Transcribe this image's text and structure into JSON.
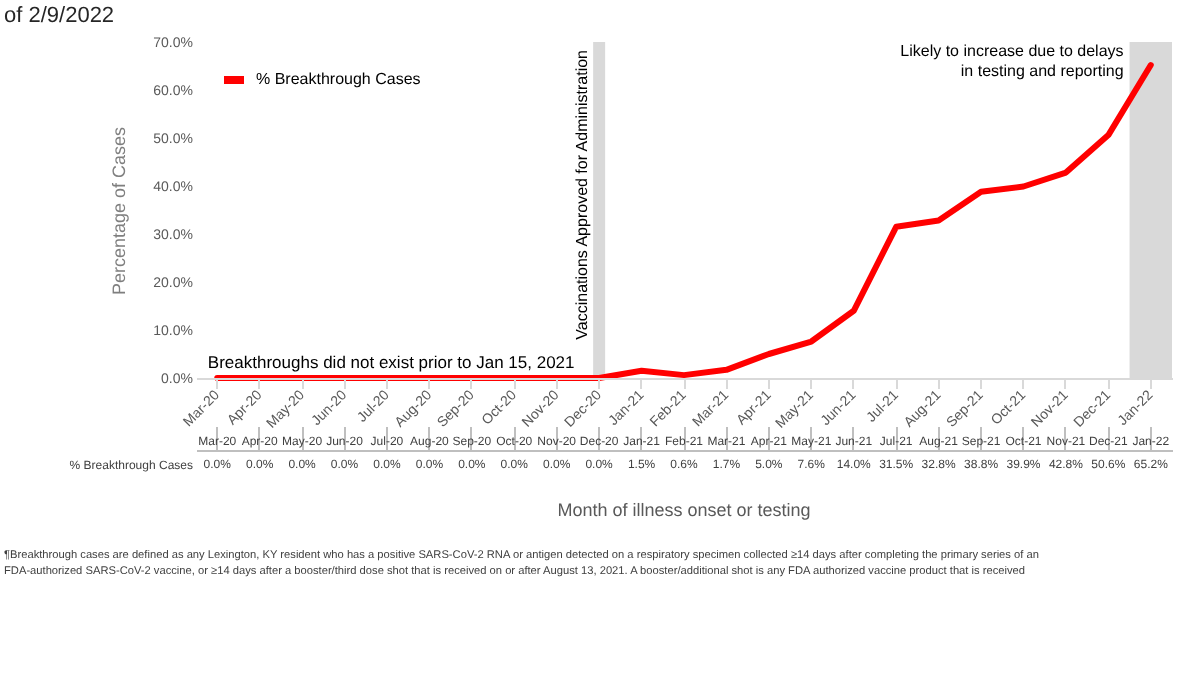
{
  "chart_data": {
    "type": "line",
    "title": "of 2/9/2022",
    "xlabel": "Month of illness onset or testing",
    "ylabel": "Percentage of Cases",
    "categories": [
      "Mar-20",
      "Apr-20",
      "May-20",
      "Jun-20",
      "Jul-20",
      "Aug-20",
      "Sep-20",
      "Oct-20",
      "Nov-20",
      "Dec-20",
      "Jan-21",
      "Feb-21",
      "Mar-21",
      "Apr-21",
      "May-21",
      "Jun-21",
      "Jul-21",
      "Aug-21",
      "Sep-21",
      "Oct-21",
      "Nov-21",
      "Dec-21",
      "Jan-22"
    ],
    "series": [
      {
        "name": "% Breakthrough Cases",
        "color": "#ff0000",
        "values": [
          0,
          0,
          0,
          0,
          0,
          0,
          0,
          0,
          0,
          0,
          1.5,
          0.6,
          1.7,
          5.0,
          7.6,
          14.0,
          31.5,
          32.8,
          38.8,
          39.9,
          42.8,
          50.6,
          65.2
        ],
        "value_labels": [
          "0.0%",
          "0.0%",
          "0.0%",
          "0.0%",
          "0.0%",
          "0.0%",
          "0.0%",
          "0.0%",
          "0.0%",
          "0.0%",
          "1.5%",
          "0.6%",
          "1.7%",
          "5.0%",
          "7.6%",
          "14.0%",
          "31.5%",
          "32.8%",
          "38.8%",
          "39.9%",
          "42.8%",
          "50.6%",
          "65.2%"
        ]
      }
    ],
    "ylim": [
      0,
      70
    ],
    "yticks": [
      {
        "value": 0,
        "label": "0.0%"
      },
      {
        "value": 10,
        "label": "10.0%"
      },
      {
        "value": 20,
        "label": "20.0%"
      },
      {
        "value": 30,
        "label": "30.0%"
      },
      {
        "value": 40,
        "label": "40.0%"
      },
      {
        "value": 50,
        "label": "50.0%"
      },
      {
        "value": 60,
        "label": "60.0%"
      },
      {
        "value": 70,
        "label": "70.0%"
      }
    ],
    "ref_lines": [
      {
        "axis": "x",
        "value": "Dec-20",
        "label": "Vaccinations Approved for Administration",
        "color": "#d9d9d9"
      }
    ],
    "bands": [
      {
        "axis": "x",
        "from": "Jan-22",
        "to": "Jan-22",
        "label": "Likely to increase due to delays in testing and reporting",
        "color": "#d9d9d9"
      }
    ],
    "annotations": [
      "Breakthroughs did not exist prior to Jan 15, 2021",
      "¶Breakthrough cases are defined as any Lexington, KY resident who has a positive SARS-CoV-2 RNA or antigen detected on a respiratory specimen collected ≥14 days after completing the primary series of an",
      "FDA-authorized SARS-CoV-2 vaccine, or ≥14 days after a booster/third dose shot that is received on or after August 13, 2021. A booster/additional shot is any FDA authorized vaccine product that is received"
    ],
    "legend": "top left",
    "marker": "none",
    "line_style": "solid",
    "grid": false,
    "data_labels": true
  }
}
